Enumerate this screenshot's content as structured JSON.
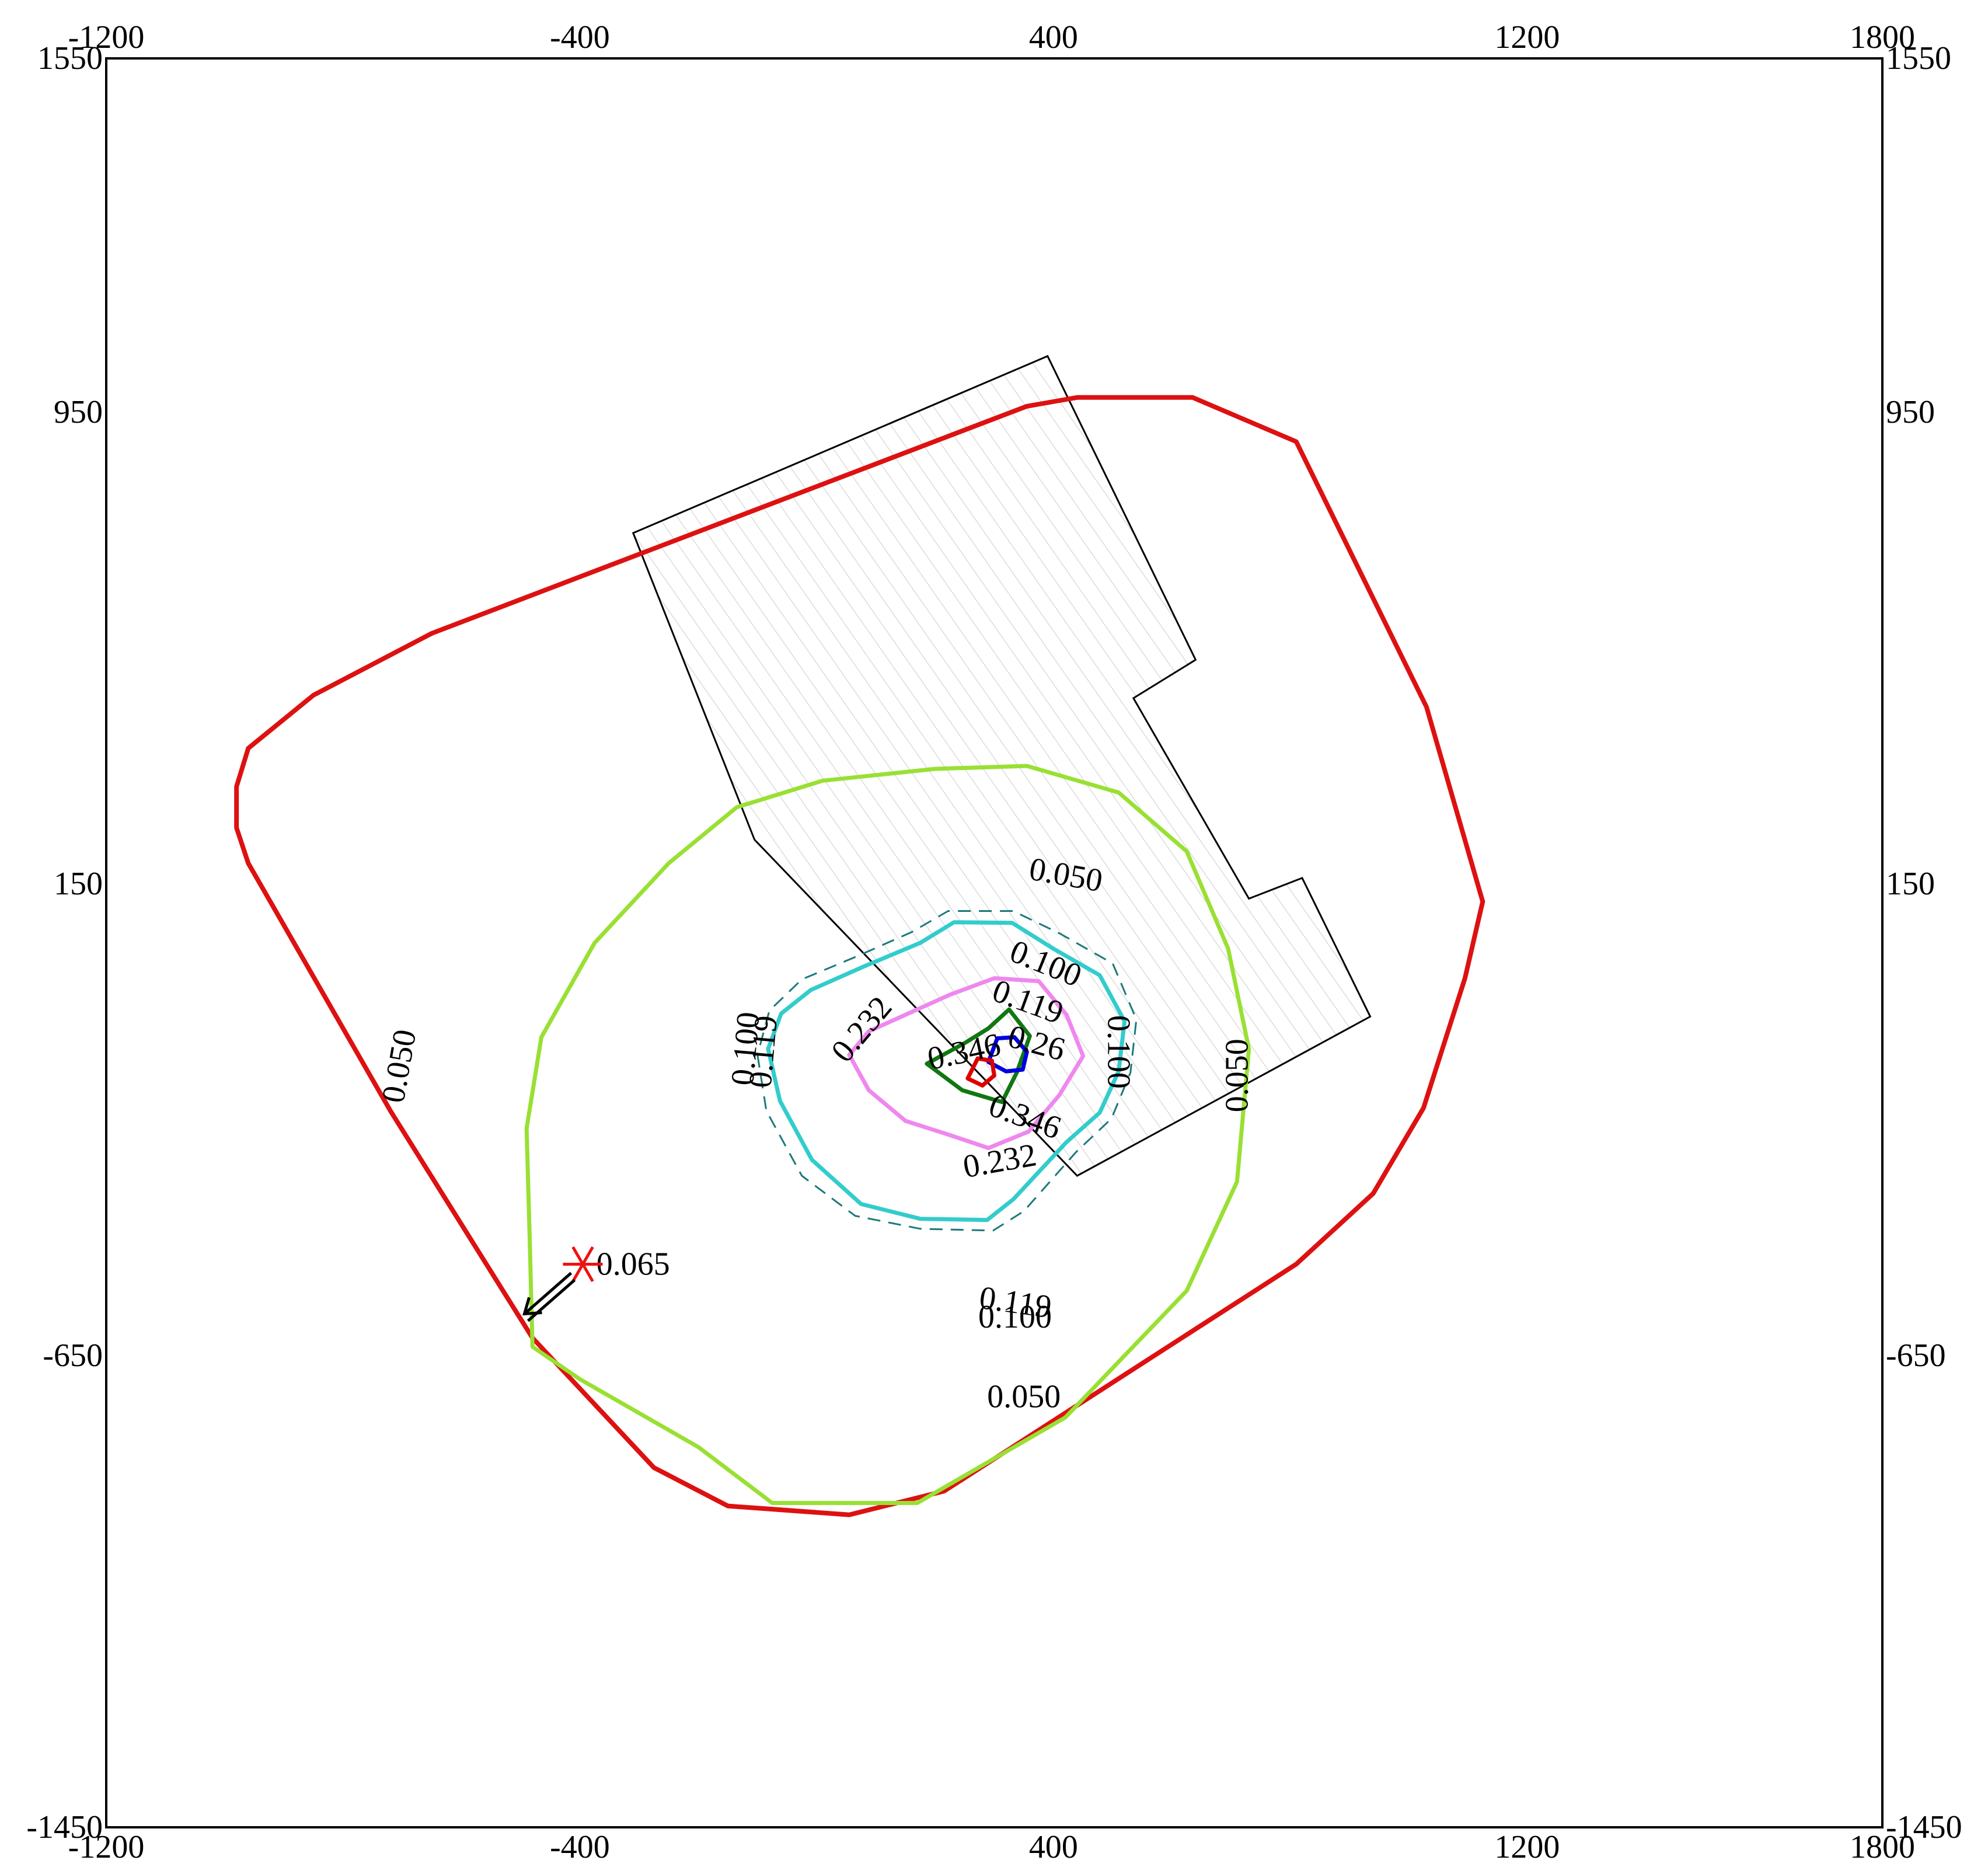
{
  "chart_data": {
    "type": "contour",
    "title": "",
    "xlabel": "",
    "ylabel": "",
    "xlim": [
      -1200,
      1800
    ],
    "ylim": [
      -1450,
      1550
    ],
    "x_ticks": [
      -1200,
      -400,
      400,
      1200,
      1800
    ],
    "y_ticks": [
      1550,
      950,
      150,
      -650,
      -1450
    ],
    "x_tick_labels": [
      "-1200",
      "-400",
      "400",
      "1200",
      "1800"
    ],
    "y_tick_labels": [
      "1550",
      "950",
      "150",
      "-650",
      "-1450"
    ],
    "grid": false,
    "legend": "none",
    "site_boundary": {
      "color": "#000000",
      "points": [
        [
          -310,
          745
        ],
        [
          390,
          1045
        ],
        [
          640,
          530
        ],
        [
          535,
          465
        ],
        [
          730,
          125
        ],
        [
          820,
          160
        ],
        [
          935,
          -75
        ],
        [
          440,
          -345
        ],
        [
          -105,
          225
        ]
      ]
    },
    "outer_boundary": {
      "color": "#dd1111",
      "points": [
        [
          -980,
          315
        ],
        [
          -980,
          245
        ],
        [
          -960,
          185
        ],
        [
          -720,
          -235
        ],
        [
          -480,
          -620
        ],
        [
          -275,
          -840
        ],
        [
          -150,
          -905
        ],
        [
          55,
          -920
        ],
        [
          215,
          -880
        ],
        [
          810,
          -495
        ],
        [
          940,
          -375
        ],
        [
          1025,
          -230
        ],
        [
          1095,
          -10
        ],
        [
          1125,
          120
        ],
        [
          1030,
          450
        ],
        [
          810,
          900
        ],
        [
          635,
          975
        ],
        [
          440,
          975
        ],
        [
          355,
          960
        ],
        [
          -650,
          575
        ],
        [
          -850,
          470
        ],
        [
          -960,
          380
        ]
      ]
    },
    "contours": [
      {
        "level": "0.050",
        "color": "#99e033",
        "points": [
          [
            -480,
            -635
          ],
          [
            -400,
            -690
          ],
          [
            -200,
            -805
          ],
          [
            -75,
            -900
          ],
          [
            170,
            -900
          ],
          [
            420,
            -755
          ],
          [
            625,
            -540
          ],
          [
            710,
            -355
          ],
          [
            730,
            -130
          ],
          [
            695,
            40
          ],
          [
            625,
            205
          ],
          [
            510,
            305
          ],
          [
            355,
            350
          ],
          [
            200,
            345
          ],
          [
            10,
            325
          ],
          [
            -135,
            280
          ],
          [
            -250,
            185
          ],
          [
            -375,
            50
          ],
          [
            -465,
            -110
          ],
          [
            -490,
            -265
          ],
          [
            -485,
            -440
          ],
          [
            -480,
            -635
          ]
        ]
      },
      {
        "level": "0.065",
        "color": "#33cccc",
        "points": [
          [
            -82,
            -130
          ],
          [
            -62,
            -218
          ],
          [
            -8,
            -318
          ],
          [
            75,
            -393
          ],
          [
            175,
            -418
          ],
          [
            288,
            -420
          ],
          [
            332,
            -385
          ],
          [
            422,
            -288
          ],
          [
            478,
            -238
          ],
          [
            510,
            -168
          ],
          [
            520,
            -83
          ],
          [
            478,
            -5
          ],
          [
            400,
            40
          ],
          [
            330,
            84
          ],
          [
            232,
            85
          ],
          [
            175,
            50
          ],
          [
            80,
            10
          ],
          [
            -10,
            -30
          ],
          [
            -60,
            -70
          ],
          [
            -82,
            -130
          ]
        ]
      },
      {
        "level": "0.100",
        "color": "#1a7a7a",
        "dashed": true,
        "points": [
          [
            -100,
            -140
          ],
          [
            -85,
            -235
          ],
          [
            -25,
            -345
          ],
          [
            65,
            -413
          ],
          [
            175,
            -435
          ],
          [
            298,
            -438
          ],
          [
            350,
            -405
          ],
          [
            438,
            -305
          ],
          [
            498,
            -248
          ],
          [
            530,
            -170
          ],
          [
            540,
            -80
          ],
          [
            500,
            15
          ],
          [
            412,
            65
          ],
          [
            332,
            104
          ],
          [
            222,
            104
          ],
          [
            160,
            68
          ],
          [
            70,
            28
          ],
          [
            -25,
            -12
          ],
          [
            -80,
            -65
          ],
          [
            -100,
            -140
          ]
        ]
      },
      {
        "level": "0.232",
        "color": "#ee88ee",
        "points": [
          [
            55,
            -140
          ],
          [
            88,
            -200
          ],
          [
            150,
            -252
          ],
          [
            225,
            -276
          ],
          [
            290,
            -298
          ],
          [
            358,
            -270
          ],
          [
            410,
            -208
          ],
          [
            450,
            -142
          ],
          [
            422,
            -72
          ],
          [
            375,
            -15
          ],
          [
            300,
            -10
          ],
          [
            225,
            -38
          ],
          [
            150,
            -72
          ],
          [
            88,
            -100
          ],
          [
            55,
            -140
          ]
        ]
      },
      {
        "level": "0.346",
        "color": "#117711",
        "points": [
          [
            186,
            -155
          ],
          [
            246,
            -200
          ],
          [
            313,
            -220
          ],
          [
            338,
            -170
          ],
          [
            360,
            -108
          ],
          [
            325,
            -63
          ],
          [
            290,
            -95
          ],
          [
            250,
            -120
          ],
          [
            186,
            -155
          ]
        ]
      },
      {
        "level": "",
        "color": "#0000dd",
        "points": [
          [
            290,
            -152
          ],
          [
            320,
            -168
          ],
          [
            348,
            -165
          ],
          [
            355,
            -135
          ],
          [
            334,
            -110
          ],
          [
            305,
            -112
          ],
          [
            290,
            -152
          ]
        ]
      },
      {
        "level": "",
        "color": "#dd0000",
        "points": [
          [
            255,
            -180
          ],
          [
            280,
            -192
          ],
          [
            300,
            -175
          ],
          [
            296,
            -150
          ],
          [
            272,
            -146
          ],
          [
            255,
            -180
          ]
        ]
      }
    ],
    "contour_labels": [
      {
        "text": "0.050",
        "x": 420,
        "y": 160,
        "angle": 10
      },
      {
        "text": "0.050",
        "x": -700,
        "y": -160,
        "angle": -80
      },
      {
        "text": "0.050",
        "x": 715,
        "y": -175,
        "angle": -90
      },
      {
        "text": "0.050",
        "x": 350,
        "y": -725,
        "angle": 0
      },
      {
        "text": "0.100",
        "x": 385,
        "y": 10,
        "angle": 22
      },
      {
        "text": "0.119",
        "x": 355,
        "y": -55,
        "angle": 20
      },
      {
        "text": "0.232",
        "x": 80,
        "y": -100,
        "angle": -50
      },
      {
        "text": "0.232",
        "x": 310,
        "y": -325,
        "angle": -10
      },
      {
        "text": "0.346",
        "x": 250,
        "y": -140,
        "angle": -12
      },
      {
        "text": "0.346",
        "x": 350,
        "y": -250,
        "angle": 20
      },
      {
        "text": "0.26",
        "x": 370,
        "y": -125,
        "angle": 15
      },
      {
        "text": "0.100",
        "x": -115,
        "y": -130,
        "angle": -85
      },
      {
        "text": "0.119",
        "x": -85,
        "y": -135,
        "angle": -85
      },
      {
        "text": "0.100",
        "x": 505,
        "y": -135,
        "angle": 90
      },
      {
        "text": "0.065",
        "x": -310,
        "y": -500,
        "angle": 0
      },
      {
        "text": "0.119",
        "x": 335,
        "y": -565,
        "angle": 8
      },
      {
        "text": "0.100",
        "x": 335,
        "y": -590,
        "angle": 0
      }
    ],
    "max_point": {
      "x": -395,
      "y": -495,
      "color": "#ee1111"
    }
  }
}
